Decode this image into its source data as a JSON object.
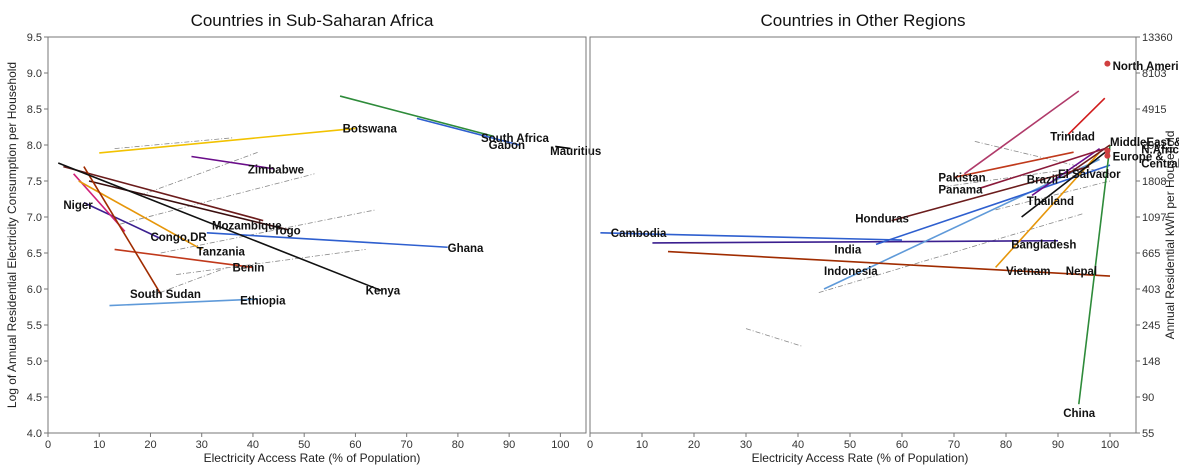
{
  "chart_data": [
    {
      "type": "line",
      "title": "Countries in Sub-Saharan Africa",
      "xlabel": "Electricity Access Rate (% of Population)",
      "ylabel": "Log of Annual Residential Electricity Consumption per Household",
      "xlim": [
        0,
        105
      ],
      "ylim": [
        4.0,
        9.5
      ],
      "xticks": [
        "0",
        "10",
        "20",
        "30",
        "40",
        "50",
        "60",
        "70",
        "80",
        "90",
        "100"
      ],
      "yticks": [
        "4.0",
        "4.5",
        "5.0",
        "5.5",
        "6.0",
        "6.5",
        "7.0",
        "7.5",
        "8.0",
        "8.5",
        "9.0",
        "9.5"
      ],
      "series": [
        {
          "name": "Botswana",
          "color": "#f2c200",
          "x": [
            10,
            60
          ],
          "y": [
            7.89,
            8.23
          ]
        },
        {
          "name": "South Africa",
          "color": "#2e5fcf",
          "x": [
            72,
            92
          ],
          "y": [
            8.37,
            8.0
          ]
        },
        {
          "name": "Gabon",
          "color": "#2e8b3a",
          "x": [
            57,
            87
          ],
          "y": [
            8.68,
            8.12
          ]
        },
        {
          "name": "Mauritius",
          "color": "#000000",
          "x": [
            99,
            102
          ],
          "y": [
            7.98,
            7.95
          ]
        },
        {
          "name": "Zimbabwe",
          "color": "#6a0d8a",
          "x": [
            28,
            44
          ],
          "y": [
            7.84,
            7.67
          ]
        },
        {
          "name": "Niger",
          "color": "#3b1f8f",
          "x": [
            7,
            22
          ],
          "y": [
            7.2,
            6.7
          ]
        },
        {
          "name": "Congo,DR",
          "color": "#d0207a",
          "x": [
            5,
            15
          ],
          "y": [
            7.6,
            6.8
          ]
        },
        {
          "name": "Mozambique",
          "color": "#6b1c1c",
          "x": [
            3,
            42
          ],
          "y": [
            7.7,
            6.95
          ]
        },
        {
          "name": "Togo",
          "color": "#3a0e0e",
          "x": [
            8,
            47
          ],
          "y": [
            7.5,
            6.82
          ]
        },
        {
          "name": "Tanzania",
          "color": "#e6960a",
          "x": [
            6,
            30
          ],
          "y": [
            7.5,
            6.55
          ]
        },
        {
          "name": "Ghana",
          "color": "#2e5fcf",
          "x": [
            31,
            78
          ],
          "y": [
            6.78,
            6.58
          ]
        },
        {
          "name": "Benin",
          "color": "#c0391b",
          "x": [
            13,
            40
          ],
          "y": [
            6.55,
            6.3
          ]
        },
        {
          "name": "South Sudan",
          "color": "#a02c00",
          "x": [
            7,
            22
          ],
          "y": [
            7.7,
            5.93
          ]
        },
        {
          "name": "Ethiopia",
          "color": "#5f9ad9",
          "x": [
            12,
            41
          ],
          "y": [
            5.77,
            5.86
          ]
        },
        {
          "name": "Kenya",
          "color": "#111111",
          "x": [
            2,
            65
          ],
          "y": [
            7.75,
            5.98
          ]
        }
      ],
      "labels": [
        {
          "text": "Botswana",
          "x": 57.5,
          "y": 8.23
        },
        {
          "text": "South Africa",
          "x": 84.5,
          "y": 8.1
        },
        {
          "text": "Gabon",
          "x": 86,
          "y": 8.0
        },
        {
          "text": "Mauritius",
          "x": 98,
          "y": 7.92
        },
        {
          "text": "Zimbabwe",
          "x": 39,
          "y": 7.66
        },
        {
          "text": "Niger",
          "x": 3,
          "y": 7.17
        },
        {
          "text": "Congo,DR",
          "x": 20,
          "y": 6.72
        },
        {
          "text": "Mozambique",
          "x": 32,
          "y": 6.88
        },
        {
          "text": "Togo",
          "x": 44,
          "y": 6.81
        },
        {
          "text": "Tanzania",
          "x": 29,
          "y": 6.52
        },
        {
          "text": "Ghana",
          "x": 78,
          "y": 6.57
        },
        {
          "text": "Benin",
          "x": 36,
          "y": 6.3
        },
        {
          "text": "South Sudan",
          "x": 16,
          "y": 5.93
        },
        {
          "text": "Ethiopia",
          "x": 37.5,
          "y": 5.84
        },
        {
          "text": "Kenya",
          "x": 62,
          "y": 5.98
        }
      ]
    },
    {
      "type": "line",
      "title": "Countries in Other Regions",
      "xlabel": "Electricity Access Rate (% of Population)",
      "ylabel": "Annual Residential kWh per Household",
      "xlim": [
        0,
        105
      ],
      "ylim": [
        4.0,
        9.5
      ],
      "xticks": [
        "0",
        "10",
        "20",
        "30",
        "40",
        "50",
        "60",
        "70",
        "80",
        "90",
        "100"
      ],
      "yticks_right": [
        "55",
        "90",
        "148",
        "245",
        "403",
        "665",
        "1097",
        "1808",
        "2981",
        "4915",
        "8103",
        "13360"
      ],
      "series": [
        {
          "name": "Cambodia",
          "color": "#2e5fcf",
          "x": [
            2,
            60
          ],
          "y": [
            6.78,
            6.68
          ]
        },
        {
          "name": "India",
          "color": "#3b1f8f",
          "x": [
            12,
            90
          ],
          "y": [
            6.64,
            6.67
          ]
        },
        {
          "name": "Indonesia",
          "color": "#5f9ad9",
          "x": [
            45,
            98
          ],
          "y": [
            6.0,
            7.8
          ]
        },
        {
          "name": "Bangladesh",
          "color": "#2e5fcf",
          "x": [
            55,
            100
          ],
          "y": [
            6.62,
            7.72
          ]
        },
        {
          "name": "Vietnam",
          "color": "#e6960a",
          "x": [
            78,
            98
          ],
          "y": [
            6.3,
            7.9
          ]
        },
        {
          "name": "Nepal",
          "color": "#a02c00",
          "x": [
            15,
            100
          ],
          "y": [
            6.52,
            6.18
          ]
        },
        {
          "name": "China",
          "color": "#2e8b3a",
          "x": [
            94,
            100
          ],
          "y": [
            4.4,
            8.0
          ]
        },
        {
          "name": "Honduras",
          "color": "#6b1c1c",
          "x": [
            58,
            96
          ],
          "y": [
            6.95,
            7.7
          ]
        },
        {
          "name": "Thailand",
          "color": "#111111",
          "x": [
            83,
            100
          ],
          "y": [
            7.0,
            7.95
          ]
        },
        {
          "name": "El Salvador",
          "color": "#6a0d8a",
          "x": [
            85,
            98
          ],
          "y": [
            7.3,
            7.95
          ]
        },
        {
          "name": "Brazil",
          "color": "#6b1c1c",
          "x": [
            91,
            100
          ],
          "y": [
            7.55,
            8.0
          ]
        },
        {
          "name": "Pakistan",
          "color": "#c0391b",
          "x": [
            70,
            93
          ],
          "y": [
            7.55,
            7.9
          ]
        },
        {
          "name": "Panama",
          "color": "#8a1a3a",
          "x": [
            75,
            99
          ],
          "y": [
            7.4,
            7.95
          ]
        },
        {
          "name": "Trinidad",
          "color": "#b03a6a",
          "x": [
            72,
            94
          ],
          "y": [
            7.6,
            8.75
          ]
        },
        {
          "name": "MiddleEast & N.Africa",
          "color": "#d11b1b",
          "x": [
            92,
            99
          ],
          "y": [
            8.15,
            8.65
          ]
        }
      ],
      "points": [
        {
          "name": "North America",
          "x": 99.5,
          "y": 9.13
        },
        {
          "name": "MiddleEast & N.Africa",
          "x": 99.5,
          "y": 7.92
        },
        {
          "name": "Europe & Central Asia",
          "x": 99.5,
          "y": 7.85
        }
      ],
      "labels": [
        {
          "text": "North America",
          "x": 100.5,
          "y": 9.1
        },
        {
          "text": "Trinidad",
          "x": 88.5,
          "y": 8.12
        },
        {
          "text": "MiddleEast &",
          "x": 100,
          "y": 8.04
        },
        {
          "text": "N.Africa",
          "x": 106,
          "y": 7.94
        },
        {
          "text": "Europe &",
          "x": 100.5,
          "y": 7.84
        },
        {
          "text": "Central Asia",
          "x": 106,
          "y": 7.74
        },
        {
          "text": "Pakistan",
          "x": 67,
          "y": 7.55
        },
        {
          "text": "Brazil",
          "x": 84,
          "y": 7.52
        },
        {
          "text": "El Salvador",
          "x": 90,
          "y": 7.6
        },
        {
          "text": "Panama",
          "x": 67,
          "y": 7.38
        },
        {
          "text": "Thailand",
          "x": 84,
          "y": 7.22
        },
        {
          "text": "Honduras",
          "x": 51,
          "y": 6.98
        },
        {
          "text": "Cambodia",
          "x": 4,
          "y": 6.78
        },
        {
          "text": "Bangladesh",
          "x": 81,
          "y": 6.62
        },
        {
          "text": "India",
          "x": 47,
          "y": 6.55
        },
        {
          "text": "Indonesia",
          "x": 45,
          "y": 6.25
        },
        {
          "text": "Vietnam",
          "x": 80,
          "y": 6.25
        },
        {
          "text": "Nepal",
          "x": 91.5,
          "y": 6.25
        },
        {
          "text": "China",
          "x": 91,
          "y": 4.28
        }
      ]
    }
  ]
}
